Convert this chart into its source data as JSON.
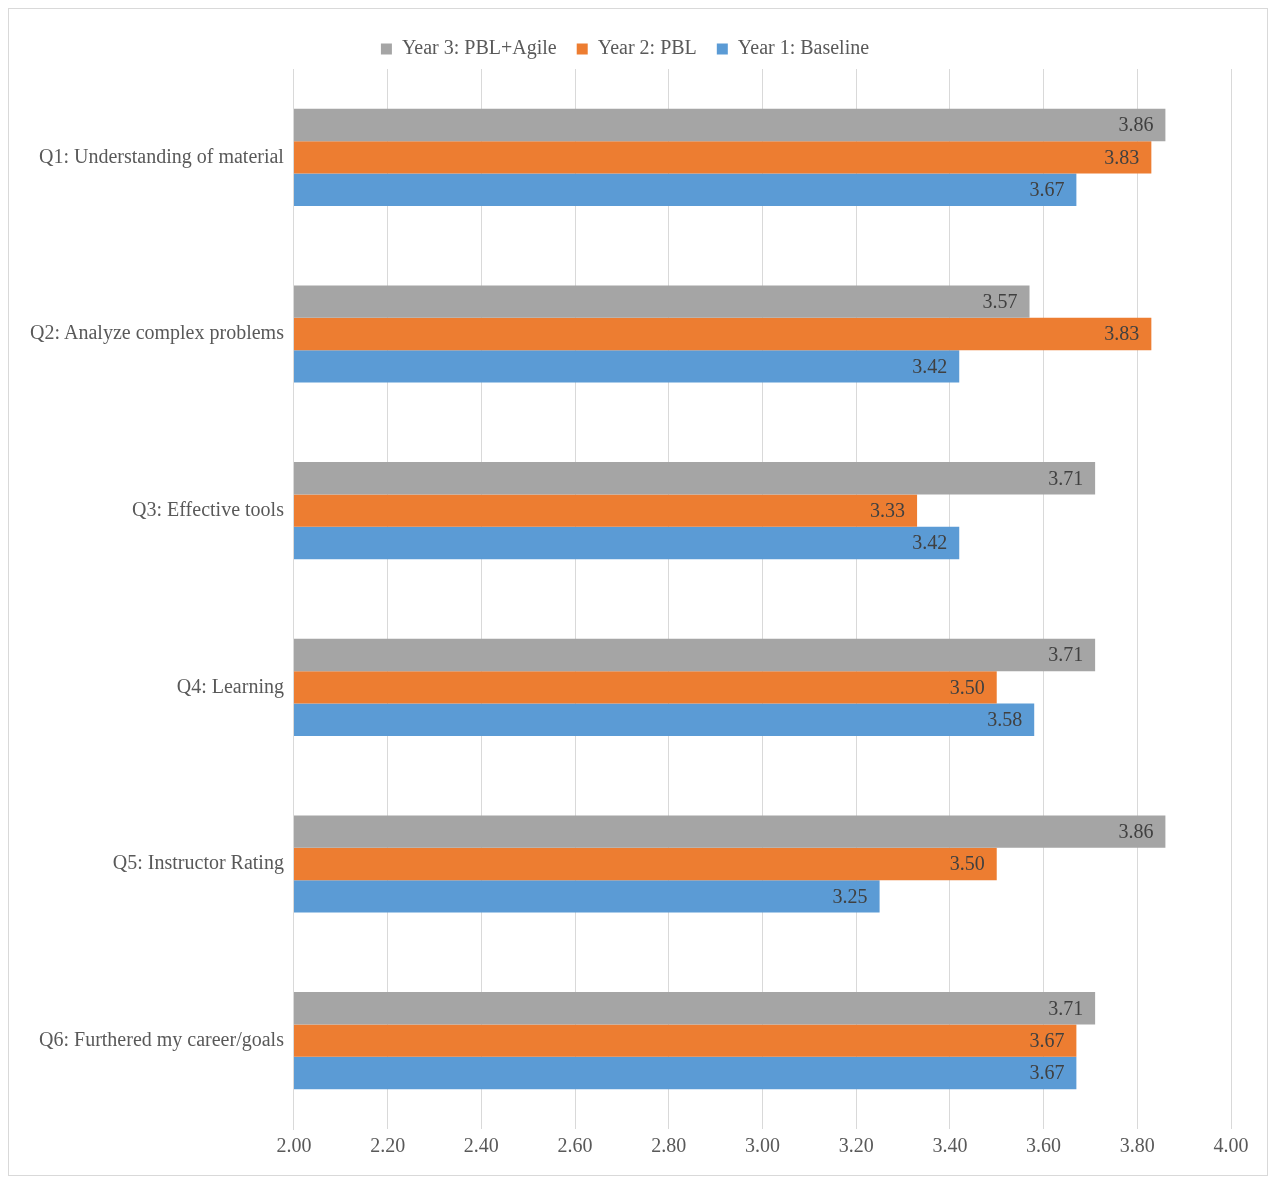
{
  "chart_data": {
    "type": "bar",
    "orientation": "horizontal",
    "categories": [
      "Q1: Understanding of material",
      "Q2: Analyze complex problems",
      "Q3: Effective tools",
      "Q4: Learning",
      "Q5: Instructor Rating",
      "Q6: Furthered my career/goals"
    ],
    "series": [
      {
        "name": "Year 3: PBL+Agile",
        "color": "#a5a5a5",
        "values": [
          3.86,
          3.57,
          3.71,
          3.71,
          3.86,
          3.71
        ],
        "value_labels": [
          "3.86",
          "3.57",
          "3.71",
          "3.71",
          "3.86",
          "3.71"
        ]
      },
      {
        "name": "Year 2: PBL",
        "color": "#ed7d31",
        "values": [
          3.83,
          3.83,
          3.33,
          3.5,
          3.5,
          3.67
        ],
        "value_labels": [
          "3.83",
          "3.83",
          "3.33",
          "3.50",
          "3.50",
          "3.67"
        ]
      },
      {
        "name": "Year 1: Baseline",
        "color": "#5b9bd5",
        "values": [
          3.67,
          3.42,
          3.42,
          3.58,
          3.25,
          3.67
        ],
        "value_labels": [
          "3.67",
          "3.42",
          "3.42",
          "3.58",
          "3.25",
          "3.67"
        ]
      }
    ],
    "xlim": [
      2.0,
      4.0
    ],
    "xticks": [
      {
        "value": 2.0,
        "label": "2.00"
      },
      {
        "value": 2.2,
        "label": "2.20"
      },
      {
        "value": 2.4,
        "label": "2.40"
      },
      {
        "value": 2.6,
        "label": "2.60"
      },
      {
        "value": 2.8,
        "label": "2.80"
      },
      {
        "value": 3.0,
        "label": "3.00"
      },
      {
        "value": 3.2,
        "label": "3.20"
      },
      {
        "value": 3.4,
        "label": "3.40"
      },
      {
        "value": 3.6,
        "label": "3.60"
      },
      {
        "value": 3.8,
        "label": "3.80"
      },
      {
        "value": 4.0,
        "label": "4.00"
      }
    ],
    "grid": "x",
    "legend": "top"
  }
}
